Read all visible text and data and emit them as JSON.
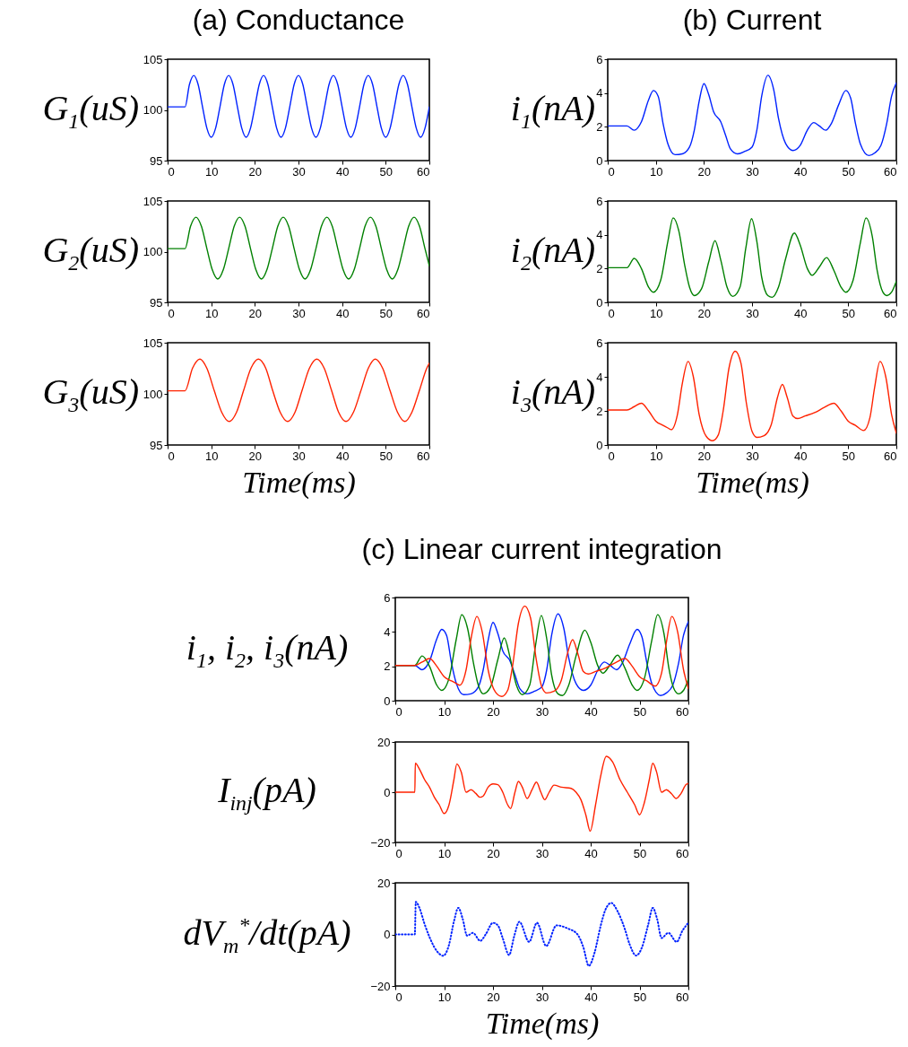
{
  "chart_data": [
    {
      "type": "line",
      "title": "(a) Conductance",
      "ylabel": "G$_{1}$(uS)",
      "xlim": [
        0,
        60
      ],
      "xticks": [
        0,
        10,
        20,
        30,
        40,
        50,
        60
      ],
      "ylim": [
        95,
        105
      ],
      "yticks": [
        95,
        100,
        105
      ],
      "series": [
        {
          "color": "#0022ff",
          "x": [
            0,
            4,
            5,
            6,
            7,
            8,
            9,
            10,
            11,
            12,
            13,
            14,
            15,
            16,
            17,
            18,
            19,
            20,
            21,
            22,
            23,
            24,
            25,
            26,
            27,
            28,
            29,
            30,
            31,
            32,
            33,
            34,
            35,
            36,
            37,
            38,
            39,
            40,
            41,
            42,
            43,
            44,
            45,
            46,
            47,
            48,
            49,
            50,
            51,
            52,
            53,
            54,
            55,
            56,
            57,
            58,
            59,
            60
          ],
          "values": [
            100.3,
            100.3,
            102.5,
            103.4,
            102.5,
            100.3,
            98.2,
            97.3,
            98.2,
            100.3,
            102.5,
            103.4,
            102.5,
            100.3,
            98.2,
            97.3,
            98.2,
            100.3,
            102.5,
            103.4,
            102.5,
            100.3,
            98.2,
            97.3,
            98.2,
            100.3,
            102.5,
            103.4,
            102.5,
            100.3,
            98.2,
            97.3,
            98.2,
            100.3,
            102.5,
            103.4,
            102.5,
            100.3,
            98.2,
            97.3,
            98.2,
            100.3,
            102.5,
            103.4,
            102.5,
            100.3,
            98.2,
            97.3,
            98.2,
            100.3,
            102.5,
            103.4,
            102.5,
            100.3,
            98.2,
            97.3,
            98.2,
            100.3
          ]
        }
      ]
    },
    {
      "type": "line",
      "ylabel": "G$_{2}$(uS)",
      "xlim": [
        0,
        60
      ],
      "xticks": [
        0,
        10,
        20,
        30,
        40,
        50,
        60
      ],
      "ylim": [
        95,
        105
      ],
      "yticks": [
        95,
        100,
        105
      ],
      "series": [
        {
          "color": "#008000",
          "x": [
            0,
            4,
            5.25,
            6.5,
            7.75,
            9,
            10.25,
            11.5,
            12.75,
            14,
            15.25,
            16.5,
            17.75,
            19,
            20.25,
            21.5,
            22.75,
            24,
            25.25,
            26.5,
            27.75,
            29,
            30.25,
            31.5,
            32.75,
            34,
            35.25,
            36.5,
            37.75,
            39,
            40.25,
            41.5,
            42.75,
            44,
            45.25,
            46.5,
            47.75,
            49,
            50.25,
            51.5,
            52.75,
            54,
            55.25,
            56.5,
            57.75,
            59,
            60
          ],
          "values": [
            100.3,
            100.3,
            102.5,
            103.4,
            102.5,
            100.3,
            98.2,
            97.3,
            98.2,
            100.3,
            102.5,
            103.4,
            102.5,
            100.3,
            98.2,
            97.3,
            98.2,
            100.3,
            102.5,
            103.4,
            102.5,
            100.3,
            98.2,
            97.3,
            98.2,
            100.3,
            102.5,
            103.4,
            102.5,
            100.3,
            98.2,
            97.3,
            98.2,
            100.3,
            102.5,
            103.4,
            102.5,
            100.3,
            98.2,
            97.3,
            98.2,
            100.3,
            102.5,
            103.4,
            102.5,
            100.3,
            98.6
          ]
        }
      ]
    },
    {
      "type": "line",
      "ylabel": "G$_{3}$(uS)",
      "xlabel": "Time(ms)",
      "xlim": [
        0,
        60
      ],
      "xticks": [
        0,
        10,
        20,
        30,
        40,
        50,
        60
      ],
      "ylim": [
        95,
        105
      ],
      "yticks": [
        95,
        100,
        105
      ],
      "series": [
        {
          "color": "#ff2200",
          "x": [
            0,
            4,
            5.7,
            7.4,
            9,
            10.7,
            12.4,
            14.1,
            15.8,
            17.4,
            19.1,
            20.8,
            22.5,
            24.1,
            25.8,
            27.5,
            29.2,
            30.8,
            32.5,
            34.2,
            35.9,
            37.6,
            39.2,
            40.9,
            42.6,
            44.3,
            46,
            47.6,
            49.3,
            51,
            52.7,
            54.4,
            56,
            57.7,
            59.4,
            60
          ],
          "values": [
            100.3,
            100.3,
            102.5,
            103.4,
            102.5,
            100.3,
            98.2,
            97.3,
            98.2,
            100.3,
            102.5,
            103.4,
            102.5,
            100.3,
            98.2,
            97.3,
            98.2,
            100.3,
            102.5,
            103.4,
            102.5,
            100.3,
            98.2,
            97.3,
            98.2,
            100.3,
            102.5,
            103.4,
            102.5,
            100.3,
            98.2,
            97.3,
            98.2,
            100.3,
            102.5,
            103
          ]
        }
      ]
    },
    {
      "type": "line",
      "title": "(b) Current",
      "ylabel": "i$_{1}$(nA)",
      "xlim": [
        0,
        60
      ],
      "xticks": [
        0,
        10,
        20,
        30,
        40,
        50,
        60
      ],
      "ylim": [
        0,
        6
      ],
      "yticks": [
        0,
        2,
        4,
        6
      ],
      "series": [
        {
          "color": "#0022ff",
          "x": [
            0,
            4,
            5.5,
            7,
            8.5,
            9.5,
            10.5,
            11.5,
            12.5,
            14,
            15.5,
            17,
            18,
            19,
            20,
            21,
            22,
            23.5,
            24.5,
            25.5,
            27,
            28.5,
            30,
            31,
            32,
            33.3,
            34.5,
            35.5,
            37,
            38.5,
            40,
            41.5,
            42.8,
            44,
            45.3,
            46.5,
            48,
            49.5,
            50.5,
            51.5,
            52.5,
            54.3,
            55.5,
            56.8,
            58,
            59,
            60
          ],
          "values": [
            2.05,
            2.05,
            1.8,
            2.3,
            3.6,
            4.15,
            3.8,
            2.2,
            1.0,
            0.35,
            0.4,
            0.8,
            1.8,
            3.5,
            4.55,
            3.9,
            2.9,
            2.3,
            1.5,
            0.7,
            0.4,
            0.55,
            0.8,
            1.8,
            3.8,
            5.05,
            4.2,
            2.5,
            1.0,
            0.6,
            0.9,
            1.8,
            2.25,
            2.05,
            1.8,
            2.2,
            3.3,
            4.15,
            3.7,
            2.2,
            1.0,
            0.3,
            0.45,
            0.9,
            2.2,
            3.8,
            4.6
          ]
        }
      ]
    },
    {
      "type": "line",
      "ylabel": "i$_{2}$(nA)",
      "xlim": [
        0,
        60
      ],
      "xticks": [
        0,
        10,
        20,
        30,
        40,
        50,
        60
      ],
      "ylim": [
        0,
        6
      ],
      "yticks": [
        0,
        2,
        4,
        6
      ],
      "series": [
        {
          "color": "#008000",
          "x": [
            0,
            4,
            5.5,
            7,
            8.5,
            9.5,
            11,
            12.5,
            13.6,
            14.8,
            16,
            17,
            18,
            19.5,
            21,
            22.3,
            23.5,
            24.8,
            26,
            27.5,
            28.7,
            29.9,
            31,
            32,
            33.3,
            34.2,
            35.5,
            37,
            38.8,
            40,
            41.5,
            42.5,
            44,
            45.5,
            47,
            48.5,
            49.5,
            51,
            52.5,
            53.7,
            55,
            56,
            57.2,
            58,
            59,
            60
          ],
          "values": [
            2.05,
            2.05,
            2.6,
            2.0,
            0.9,
            0.6,
            1.3,
            3.6,
            5.0,
            4.2,
            2.2,
            0.9,
            0.4,
            0.8,
            2.4,
            3.65,
            2.5,
            0.9,
            0.35,
            0.9,
            3.2,
            4.95,
            3.6,
            1.5,
            0.4,
            0.3,
            0.9,
            2.6,
            4.1,
            3.4,
            2.0,
            1.6,
            2.1,
            2.65,
            1.9,
            0.9,
            0.6,
            1.3,
            3.5,
            5.0,
            3.9,
            1.9,
            0.6,
            0.4,
            0.6,
            1.25
          ]
        }
      ]
    },
    {
      "type": "line",
      "ylabel": "i$_{3}$(nA)",
      "xlabel": "Time(ms)",
      "xlim": [
        0,
        60
      ],
      "xticks": [
        0,
        10,
        20,
        30,
        40,
        50,
        60
      ],
      "ylim": [
        0,
        6
      ],
      "yticks": [
        0,
        2,
        4,
        6
      ],
      "series": [
        {
          "color": "#ff2200",
          "x": [
            0,
            4,
            5.5,
            7,
            8.5,
            10,
            11.5,
            12.5,
            13.2,
            14.5,
            15.5,
            16.7,
            17.8,
            19,
            20.5,
            21.8,
            23,
            24,
            25.2,
            26.5,
            27.7,
            28.8,
            30,
            31,
            32.5,
            34,
            35.3,
            36.3,
            37.3,
            38.5,
            39.5,
            41,
            43,
            45,
            47,
            48.5,
            50,
            51.5,
            53.2,
            54.5,
            55.5,
            56.6,
            57.8,
            59,
            60
          ],
          "values": [
            2.05,
            2.05,
            2.25,
            2.45,
            2.0,
            1.4,
            1.15,
            1.0,
            0.9,
            1.8,
            3.6,
            4.9,
            4.0,
            1.8,
            0.5,
            0.25,
            0.6,
            2.0,
            4.5,
            5.5,
            4.8,
            2.5,
            0.8,
            0.45,
            0.55,
            1.2,
            2.8,
            3.55,
            2.8,
            1.7,
            1.55,
            1.7,
            1.9,
            2.2,
            2.45,
            2.0,
            1.4,
            1.15,
            0.85,
            1.6,
            3.4,
            4.9,
            4.0,
            1.8,
            0.7
          ]
        }
      ]
    },
    {
      "type": "line",
      "title": "(c) Linear current integration",
      "ylabel": "i$_{1}$, i$_{2}$, i$_{3}$(nA)",
      "xlim": [
        0,
        60
      ],
      "xticks": [
        0,
        10,
        20,
        30,
        40,
        50,
        60
      ],
      "ylim": [
        0,
        6
      ],
      "yticks": [
        0,
        2,
        4,
        6
      ],
      "series": [
        {
          "color": "#0022ff",
          "x": [
            0,
            4,
            5.5,
            7,
            8.5,
            9.5,
            10.5,
            11.5,
            12.5,
            14,
            15.5,
            17,
            18,
            19,
            20,
            21,
            22,
            23.5,
            24.5,
            25.5,
            27,
            28.5,
            30,
            31,
            32,
            33.3,
            34.5,
            35.5,
            37,
            38.5,
            40,
            41.5,
            42.8,
            44,
            45.3,
            46.5,
            48,
            49.5,
            50.5,
            51.5,
            52.5,
            54.3,
            55.5,
            56.8,
            58,
            59,
            60
          ],
          "values": [
            2.05,
            2.05,
            1.8,
            2.3,
            3.6,
            4.15,
            3.8,
            2.2,
            1.0,
            0.35,
            0.4,
            0.8,
            1.8,
            3.5,
            4.55,
            3.9,
            2.9,
            2.3,
            1.5,
            0.7,
            0.4,
            0.55,
            0.8,
            1.8,
            3.8,
            5.05,
            4.2,
            2.5,
            1.0,
            0.6,
            0.9,
            1.8,
            2.25,
            2.05,
            1.8,
            2.2,
            3.3,
            4.15,
            3.7,
            2.2,
            1.0,
            0.3,
            0.45,
            0.9,
            2.2,
            3.8,
            4.6
          ]
        },
        {
          "color": "#008000",
          "x": [
            0,
            4,
            5.5,
            7,
            8.5,
            9.5,
            11,
            12.5,
            13.6,
            14.8,
            16,
            17,
            18,
            19.5,
            21,
            22.3,
            23.5,
            24.8,
            26,
            27.5,
            28.7,
            29.9,
            31,
            32,
            33.3,
            34.2,
            35.5,
            37,
            38.8,
            40,
            41.5,
            42.5,
            44,
            45.5,
            47,
            48.5,
            49.5,
            51,
            52.5,
            53.7,
            55,
            56,
            57.2,
            58,
            59,
            60
          ],
          "values": [
            2.05,
            2.05,
            2.6,
            2.0,
            0.9,
            0.6,
            1.3,
            3.6,
            5.0,
            4.2,
            2.2,
            0.9,
            0.4,
            0.8,
            2.4,
            3.65,
            2.5,
            0.9,
            0.35,
            0.9,
            3.2,
            4.95,
            3.6,
            1.5,
            0.4,
            0.3,
            0.9,
            2.6,
            4.1,
            3.4,
            2.0,
            1.6,
            2.1,
            2.65,
            1.9,
            0.9,
            0.6,
            1.3,
            3.5,
            5.0,
            3.9,
            1.9,
            0.6,
            0.4,
            0.6,
            1.25
          ]
        },
        {
          "color": "#ff2200",
          "x": [
            0,
            4,
            5.5,
            7,
            8.5,
            10,
            11.5,
            12.5,
            13.2,
            14.5,
            15.5,
            16.7,
            17.8,
            19,
            20.5,
            21.8,
            23,
            24,
            25.2,
            26.5,
            27.7,
            28.8,
            30,
            31,
            32.5,
            34,
            35.3,
            36.3,
            37.3,
            38.5,
            39.5,
            41,
            43,
            45,
            47,
            48.5,
            50,
            51.5,
            53.2,
            54.5,
            55.5,
            56.6,
            57.8,
            59,
            60
          ],
          "values": [
            2.05,
            2.05,
            2.25,
            2.45,
            2.0,
            1.4,
            1.15,
            1.0,
            0.9,
            1.8,
            3.6,
            4.9,
            4.0,
            1.8,
            0.5,
            0.25,
            0.6,
            2.0,
            4.5,
            5.5,
            4.8,
            2.5,
            0.8,
            0.45,
            0.55,
            1.2,
            2.8,
            3.55,
            2.8,
            1.7,
            1.55,
            1.7,
            1.9,
            2.2,
            2.45,
            2.0,
            1.4,
            1.15,
            0.85,
            1.6,
            3.4,
            4.9,
            4.0,
            1.8,
            0.7
          ]
        }
      ]
    },
    {
      "type": "line",
      "ylabel": "I$_{inj}$(pA)",
      "xlim": [
        0,
        60
      ],
      "xticks": [
        0,
        10,
        20,
        30,
        40,
        50,
        60
      ],
      "ylim": [
        -20,
        20
      ],
      "yticks": [
        -20,
        0,
        20
      ],
      "series": [
        {
          "color": "#ff2200",
          "x": [
            0,
            4,
            4.1,
            5,
            6,
            7,
            8,
            9,
            10,
            11,
            12,
            12.6,
            13.5,
            14.5,
            15.5,
            16.5,
            17.3,
            18,
            19,
            20,
            21,
            22,
            23,
            23.6,
            24.5,
            25.2,
            26,
            27,
            28,
            28.9,
            29.8,
            30.6,
            31.5,
            32.5,
            34,
            36,
            37,
            38,
            39,
            39.9,
            41,
            42,
            43.2,
            44.5,
            46,
            47.5,
            49,
            50,
            51,
            52,
            52.7,
            53.5,
            54.5,
            55.5,
            56.5,
            57.5,
            58.5,
            59.5,
            60
          ],
          "values": [
            0,
            0,
            11.5,
            9,
            5,
            2,
            -2,
            -5,
            -8.5,
            -5,
            5,
            11.2,
            8,
            0,
            1,
            -0.5,
            -2,
            -1.5,
            2,
            3.3,
            3,
            0,
            -5,
            -6.5,
            0,
            4.3,
            2,
            -2.5,
            1,
            4,
            0,
            -3,
            0,
            2.8,
            2,
            1.5,
            0,
            -3,
            -9,
            -15.5,
            -5,
            6,
            14.3,
            12,
            5,
            0,
            -5,
            -9,
            -4,
            5,
            11.5,
            8,
            0,
            1,
            -0.5,
            -2.5,
            -0.5,
            3,
            3.5
          ]
        }
      ]
    },
    {
      "type": "line",
      "ylabel": "dV$_{m}$$^{*}$/dt(pA)",
      "xlabel": "Time(ms)",
      "line_style": "dotted",
      "xlim": [
        0,
        60
      ],
      "xticks": [
        0,
        10,
        20,
        30,
        40,
        50,
        60
      ],
      "ylim": [
        -20,
        20
      ],
      "yticks": [
        -20,
        0,
        20
      ],
      "series": [
        {
          "color": "#0022ff",
          "x": [
            0,
            4,
            4.2,
            5,
            6,
            7,
            8,
            9,
            9.8,
            11,
            12,
            12.9,
            13.8,
            14.7,
            15.9,
            17.4,
            18.5,
            20,
            21,
            22,
            23.3,
            24.3,
            25.4,
            27.4,
            29,
            30.9,
            33,
            35.3,
            37.3,
            38.5,
            39.6,
            40.8,
            42,
            43,
            44.2,
            45.5,
            47,
            48,
            49.3,
            50.5,
            51.8,
            52.7,
            53.6,
            54.5,
            55.9,
            57.6,
            58.8,
            60
          ],
          "values": [
            0,
            0,
            12.6,
            10,
            4,
            -1,
            -5,
            -7.5,
            -8.3,
            -4,
            5,
            10.3,
            6,
            -0.5,
            0.6,
            -2.5,
            0,
            4.5,
            3.5,
            -1.5,
            -8,
            -1,
            4.9,
            -2.9,
            4.5,
            -4.5,
            3.5,
            2.3,
            0,
            -5,
            -12.2,
            -7,
            3,
            9.5,
            12.2,
            9,
            2,
            -4,
            -8.2,
            -5,
            4,
            10.3,
            6,
            -1.4,
            0.6,
            -2.9,
            1.5,
            4.5
          ]
        }
      ]
    }
  ]
}
